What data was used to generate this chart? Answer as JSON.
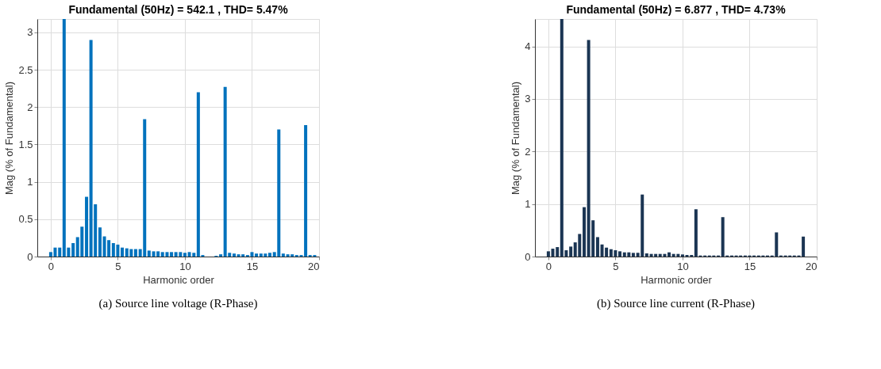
{
  "chart_data": [
    {
      "type": "bar",
      "title": "Fundamental (50Hz) = 542.1 , THD= 5.47%",
      "xlabel": "Harmonic order",
      "ylabel": "Mag (% of Fundamental)",
      "x": [
        0,
        0.33,
        0.67,
        1,
        1.33,
        1.67,
        2,
        2.33,
        2.67,
        3,
        3.33,
        3.67,
        4,
        4.33,
        4.67,
        5,
        5.33,
        5.67,
        6,
        6.33,
        6.67,
        7,
        7.33,
        7.67,
        8,
        8.33,
        8.67,
        9,
        9.33,
        9.67,
        10,
        10.33,
        10.67,
        11,
        11.33,
        11.67,
        12,
        12.33,
        12.67,
        13,
        13.33,
        13.67,
        14,
        14.33,
        14.67,
        15,
        15.33,
        15.67,
        16,
        16.33,
        16.67,
        17,
        17.33,
        17.67,
        18,
        18.33,
        18.67,
        19,
        19.33,
        19.67
      ],
      "series": [
        {
          "color": "#0072bd",
          "values": [
            0.06,
            0.12,
            0.12,
            3.18,
            0.12,
            0.18,
            0.26,
            0.4,
            0.8,
            2.9,
            0.7,
            0.39,
            0.27,
            0.22,
            0.18,
            0.16,
            0.12,
            0.11,
            0.1,
            0.1,
            0.1,
            1.84,
            0.08,
            0.07,
            0.07,
            0.06,
            0.06,
            0.06,
            0.06,
            0.06,
            0.05,
            0.06,
            0.05,
            2.2,
            0.02,
            0,
            0,
            0.01,
            0.03,
            2.27,
            0.05,
            0.04,
            0.03,
            0.03,
            0.02,
            0.06,
            0.04,
            0.04,
            0.04,
            0.05,
            0.06,
            1.7,
            0.04,
            0.03,
            0.03,
            0.02,
            0.02,
            1.76,
            0.02,
            0.02
          ]
        }
      ],
      "xlim": [
        -1,
        20
      ],
      "xticks": [
        0,
        5,
        10,
        15,
        20
      ],
      "ylim": [
        0,
        3.18
      ],
      "yticks": [
        0,
        0.5,
        1,
        1.5,
        2,
        2.5,
        3
      ],
      "grid": true,
      "annotations": [
        "(a) Source line voltage (R-Phase)"
      ]
    },
    {
      "type": "bar",
      "title": "Fundamental (50Hz) = 6.877 , THD= 4.73%",
      "xlabel": "Harmonic order",
      "ylabel": "Mag (% of Fundamental)",
      "x": [
        0,
        0.33,
        0.67,
        1,
        1.33,
        1.67,
        2,
        2.33,
        2.67,
        3,
        3.33,
        3.67,
        4,
        4.33,
        4.67,
        5,
        5.33,
        5.67,
        6,
        6.33,
        6.67,
        7,
        7.33,
        7.67,
        8,
        8.33,
        8.67,
        9,
        9.33,
        9.67,
        10,
        10.33,
        10.67,
        11,
        11.33,
        11.67,
        12,
        12.33,
        12.67,
        13,
        13.33,
        13.67,
        14,
        14.33,
        14.67,
        15,
        15.33,
        15.67,
        16,
        16.33,
        16.67,
        17,
        17.33,
        17.67,
        18,
        18.33,
        18.67,
        19,
        19.33,
        19.67
      ],
      "series": [
        {
          "color": "#1b3553",
          "values": [
            0.1,
            0.15,
            0.18,
            4.52,
            0.12,
            0.19,
            0.27,
            0.43,
            0.94,
            4.12,
            0.69,
            0.37,
            0.23,
            0.17,
            0.14,
            0.12,
            0.1,
            0.08,
            0.08,
            0.07,
            0.07,
            1.18,
            0.06,
            0.05,
            0.05,
            0.05,
            0.05,
            0.08,
            0.05,
            0.05,
            0.04,
            0.03,
            0.03,
            0.9,
            0.02,
            0.02,
            0.02,
            0.02,
            0.02,
            0.75,
            0.02,
            0.02,
            0.02,
            0.02,
            0.02,
            0.02,
            0.02,
            0.02,
            0.02,
            0.02,
            0.02,
            0.46,
            0.02,
            0.02,
            0.02,
            0.02,
            0.02,
            0.38,
            0,
            0
          ]
        }
      ],
      "xlim": [
        -1,
        20
      ],
      "xticks": [
        0,
        5,
        10,
        15,
        20
      ],
      "ylim": [
        0,
        4.52
      ],
      "yticks": [
        0,
        1,
        2,
        3,
        4
      ],
      "grid": true,
      "annotations": [
        "(b) Source line current (R-Phase)"
      ]
    }
  ]
}
